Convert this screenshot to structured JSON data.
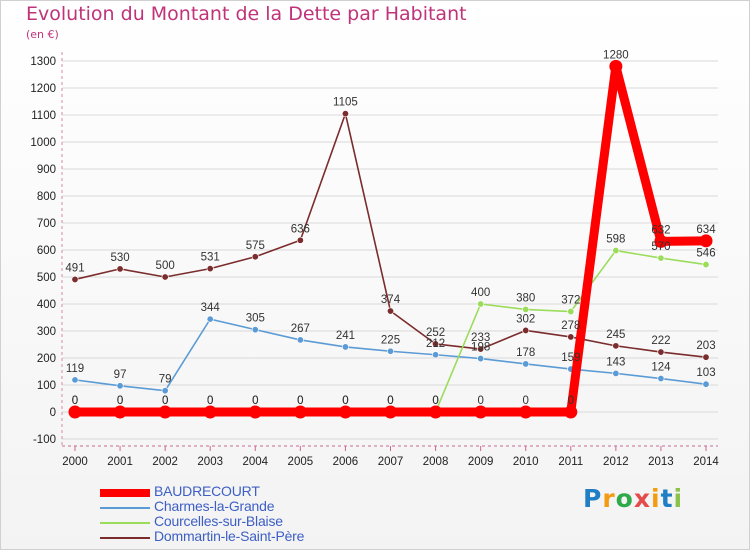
{
  "header": {
    "title": "Evolution du Montant de la Dette par Habitant",
    "subtitle": "(en €)"
  },
  "logo": {
    "text": "Proxiti"
  },
  "chart_data": {
    "type": "line",
    "title": "Evolution du Montant de la Dette par Habitant",
    "subtitle": "(en €)",
    "xlabel": "",
    "ylabel": "",
    "x": [
      "2000",
      "2001",
      "2002",
      "2003",
      "2004",
      "2005",
      "2006",
      "2007",
      "2008",
      "2009",
      "2010",
      "2011",
      "2012",
      "2013",
      "2014"
    ],
    "ylim": [
      -100,
      1300
    ],
    "yticks": [
      -100,
      0,
      100,
      200,
      300,
      400,
      500,
      600,
      700,
      800,
      900,
      1000,
      1100,
      1200,
      1300
    ],
    "grid": true,
    "legend_position": "bottom-left",
    "series": [
      {
        "name": "BAUDRECOURT",
        "color": "#ff0000",
        "emphasis": true,
        "values": [
          0,
          0,
          0,
          0,
          0,
          0,
          0,
          0,
          0,
          0,
          0,
          0,
          1280,
          632,
          634
        ]
      },
      {
        "name": "Charmes-la-Grande",
        "color": "#5b9bd5",
        "values": [
          119,
          97,
          79,
          344,
          305,
          267,
          241,
          225,
          212,
          198,
          178,
          159,
          143,
          124,
          103
        ],
        "labels": [
          "119",
          "97",
          "79",
          "344",
          "305",
          "267",
          "241",
          "225",
          "212",
          "198",
          "178",
          "159",
          "143",
          "124",
          "103"
        ]
      },
      {
        "name": "Courcelles-sur-Blaise",
        "color": "#9bdc5a",
        "values": [
          0,
          0,
          0,
          0,
          0,
          0,
          0,
          0,
          0,
          400,
          380,
          372,
          598,
          570,
          546
        ],
        "labels": [
          "0",
          "0",
          "0",
          "0",
          "0",
          "0",
          "0",
          "0",
          "0",
          "400",
          "380",
          "372",
          "598",
          "570",
          "546"
        ]
      },
      {
        "name": "Dommartin-le-Saint-Père",
        "color": "#7b2c2c",
        "values": [
          491,
          530,
          500,
          531,
          575,
          636,
          1105,
          374,
          252,
          233,
          302,
          278,
          245,
          222,
          203
        ],
        "labels": [
          "491",
          "530",
          "500",
          "531",
          "575",
          "636",
          "1105",
          "374",
          "252",
          "233",
          "302",
          "278",
          "245",
          "222",
          "203"
        ]
      }
    ]
  }
}
